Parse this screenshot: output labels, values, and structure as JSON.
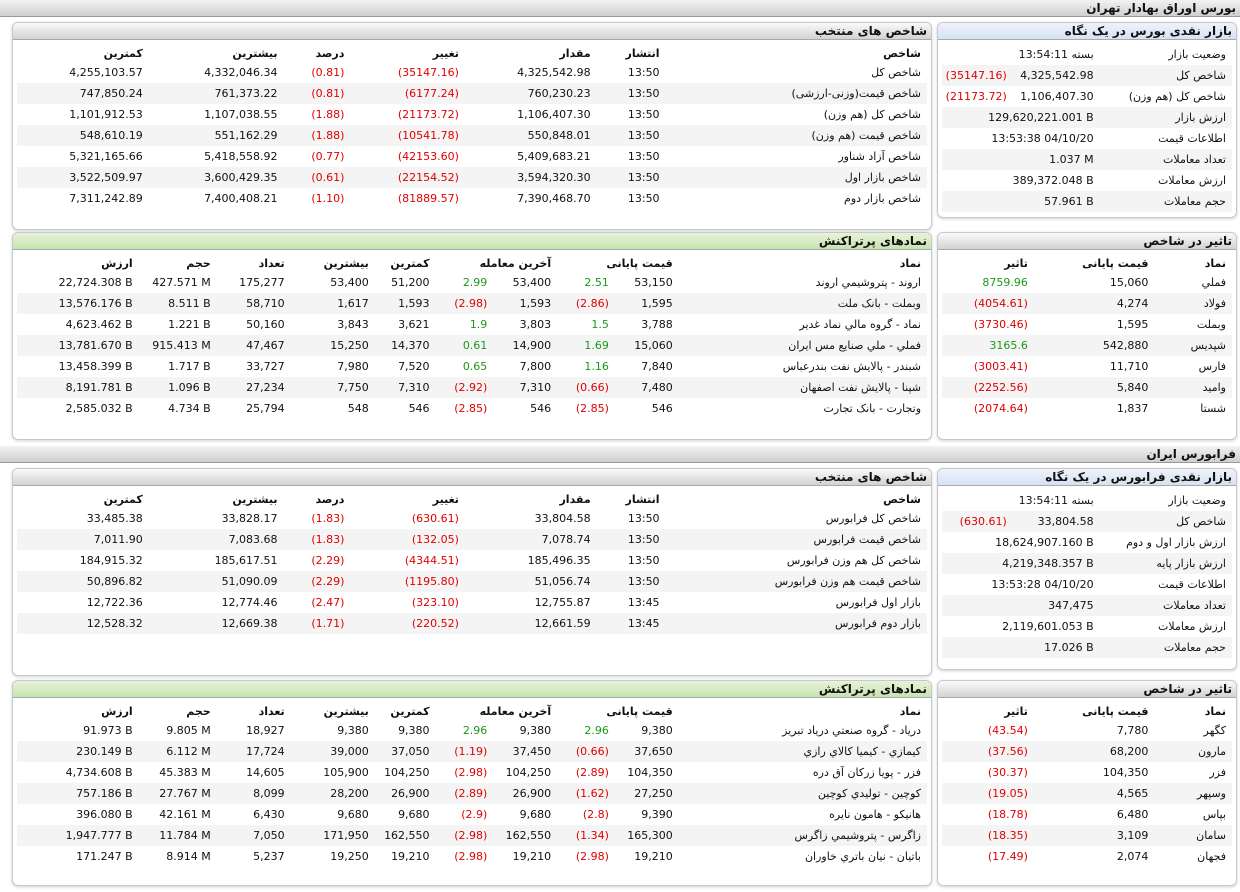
{
  "sections": [
    {
      "title": "بورس اوراق بهادار تهران",
      "overview": {
        "title": "بازار نقدی بورس در یک نگاه",
        "rows": [
          [
            "وضعیت بازار",
            "بسته 13:54:11"
          ],
          [
            "شاخص کل",
            "4,325,542.98",
            "(35147.16)"
          ],
          [
            "شاخص کل (هم وزن)",
            "1,106,407.30",
            "(21173.72)"
          ],
          [
            "ارزش بازار",
            "129,620,221.001 B"
          ],
          [
            "اطلاعات قیمت",
            "13:53:38 04/10/20"
          ],
          [
            "تعداد معاملات",
            "1.037 M"
          ],
          [
            "ارزش معاملات",
            "389,372.048 B"
          ],
          [
            "حجم معاملات",
            "57.961 B"
          ]
        ]
      },
      "indices": {
        "title": "شاخص های منتخب",
        "headers": [
          "شاخص",
          "انتشار",
          "مقدار",
          "تغییر",
          "درصد",
          "بیشترین",
          "کمترین"
        ],
        "rows": [
          [
            "شاخص کل",
            "13:50",
            "4,325,542.98",
            "(35147.16)",
            "(0.81)",
            "4,332,046.34",
            "4,255,103.57"
          ],
          [
            "شاخص قیمت(وزنی-ارزشی)",
            "13:50",
            "760,230.23",
            "(6177.24)",
            "(0.81)",
            "761,373.22",
            "747,850.24"
          ],
          [
            "شاخص کل (هم وزن)",
            "13:50",
            "1,106,407.30",
            "(21173.72)",
            "(1.88)",
            "1,107,038.55",
            "1,101,912.53"
          ],
          [
            "شاخص قیمت (هم وزن)",
            "13:50",
            "550,848.01",
            "(10541.78)",
            "(1.88)",
            "551,162.29",
            "548,610.19"
          ],
          [
            "شاخص آزاد شناور",
            "13:50",
            "5,409,683.21",
            "(42153.60)",
            "(0.77)",
            "5,418,558.92",
            "5,321,165.66"
          ],
          [
            "شاخص بازار اول",
            "13:50",
            "3,594,320.30",
            "(22154.52)",
            "(0.61)",
            "3,600,429.35",
            "3,522,509.97"
          ],
          [
            "شاخص بازار دوم",
            "13:50",
            "7,390,468.70",
            "(81889.57)",
            "(1.10)",
            "7,400,408.21",
            "7,311,242.89"
          ]
        ]
      },
      "impact": {
        "title": "تاثیر در شاخص",
        "headers": [
          "نماد",
          "قیمت پایانی",
          "تاثیر"
        ],
        "rows": [
          [
            "فملي",
            "15,060",
            "8759.96"
          ],
          [
            "فولاد",
            "4,274",
            "(4054.61)"
          ],
          [
            "وبملت",
            "1,595",
            "(3730.46)"
          ],
          [
            "شپديس",
            "542,880",
            "3165.6"
          ],
          [
            "فارس",
            "11,710",
            "(3003.41)"
          ],
          [
            "واميد",
            "5,840",
            "(2252.56)"
          ],
          [
            "شستا",
            "1,837",
            "(2074.64)"
          ]
        ]
      },
      "top": {
        "title": "نمادهای پرتراکنش",
        "headers": [
          "نماد",
          "قیمت پایانی",
          "آخرین معامله",
          "کمترین",
          "بیشترین",
          "تعداد",
          "حجم",
          "ارزش"
        ],
        "rows": [
          [
            "اروند - پتروشيمي اروند",
            "53,150",
            "2.51",
            "53,400",
            "2.99",
            "51,200",
            "53,400",
            "175,277",
            "427.571 M",
            "22,724.308 B"
          ],
          [
            "وبملت - بانک ملت",
            "1,595",
            "(2.86)",
            "1,593",
            "(2.98)",
            "1,593",
            "1,617",
            "58,710",
            "8.511 B",
            "13,576.176 B"
          ],
          [
            "نماد - گروه مالي نماد غدير",
            "3,788",
            "1.5",
            "3,803",
            "1.9",
            "3,621",
            "3,843",
            "50,160",
            "1.221 B",
            "4,623.462 B"
          ],
          [
            "فملي - ملي صنايع مس ايران",
            "15,060",
            "1.69",
            "14,900",
            "0.61",
            "14,370",
            "15,250",
            "47,467",
            "915.413 M",
            "13,781.670 B"
          ],
          [
            "شبندر - پالايش نفت بندرعباس",
            "7,840",
            "1.16",
            "7,800",
            "0.65",
            "7,520",
            "7,980",
            "33,727",
            "1.717 B",
            "13,458.399 B"
          ],
          [
            "شپنا - پالايش نفت اصفهان",
            "7,480",
            "(0.66)",
            "7,310",
            "(2.92)",
            "7,310",
            "7,750",
            "27,234",
            "1.096 B",
            "8,191.781 B"
          ],
          [
            "وتجارت - بانک تجارت",
            "546",
            "(2.85)",
            "546",
            "(2.85)",
            "546",
            "548",
            "25,794",
            "4.734 B",
            "2,585.032 B"
          ]
        ]
      }
    },
    {
      "title": "فرابورس ایران",
      "overview": {
        "title": "بازار نقدی فرابورس در یک نگاه",
        "rows": [
          [
            "وضعیت بازار",
            "بسته 13:54:11"
          ],
          [
            "شاخص کل",
            "33,804.58",
            "(630.61)"
          ],
          [
            "ارزش بازار اول و دوم",
            "18,624,907.160 B"
          ],
          [
            "ارزش بازار پایه",
            "4,219,348.357 B"
          ],
          [
            "اطلاعات قیمت",
            "13:53:28 04/10/20"
          ],
          [
            "تعداد معاملات",
            "347,475"
          ],
          [
            "ارزش معاملات",
            "2,119,601.053 B"
          ],
          [
            "حجم معاملات",
            "17.026 B"
          ]
        ]
      },
      "indices": {
        "title": "شاخص های منتخب",
        "headers": [
          "شاخص",
          "انتشار",
          "مقدار",
          "تغییر",
          "درصد",
          "بیشترین",
          "کمترین"
        ],
        "rows": [
          [
            "شاخص کل فرابورس",
            "13:50",
            "33,804.58",
            "(630.61)",
            "(1.83)",
            "33,828.17",
            "33,485.38"
          ],
          [
            "شاخص قيمت فرابورس",
            "13:50",
            "7,078.74",
            "(132.05)",
            "(1.83)",
            "7,083.68",
            "7,011.90"
          ],
          [
            "شاخص کل هم وزن فرابورس",
            "13:50",
            "185,496.35",
            "(4344.51)",
            "(2.29)",
            "185,617.51",
            "184,915.32"
          ],
          [
            "شاخص قيمت هم وزن فرابورس",
            "13:50",
            "51,056.74",
            "(1195.80)",
            "(2.29)",
            "51,090.09",
            "50,896.82"
          ],
          [
            "بازار اول فرابورس",
            "13:45",
            "12,755.87",
            "(323.10)",
            "(2.47)",
            "12,774.46",
            "12,722.36"
          ],
          [
            "بازار دوم فرابورس",
            "13:45",
            "12,661.59",
            "(220.52)",
            "(1.71)",
            "12,669.38",
            "12,528.32"
          ]
        ]
      },
      "impact": {
        "title": "تاثیر در شاخص",
        "headers": [
          "نماد",
          "قیمت پایانی",
          "تاثیر"
        ],
        "rows": [
          [
            "کگهر",
            "7,780",
            "(43.54)"
          ],
          [
            "مارون",
            "68,200",
            "(37.56)"
          ],
          [
            "فزر",
            "104,350",
            "(30.37)"
          ],
          [
            "وسپهر",
            "4,565",
            "(19.05)"
          ],
          [
            "بپاس",
            "6,480",
            "(18.78)"
          ],
          [
            "سامان",
            "3,109",
            "(18.35)"
          ],
          [
            "فجهان",
            "2,074",
            "(17.49)"
          ]
        ]
      },
      "top": {
        "title": "نمادهای پرتراکنش",
        "headers": [
          "نماد",
          "قیمت پایانی",
          "آخرین معامله",
          "کمترین",
          "بیشترین",
          "تعداد",
          "حجم",
          "ارزش"
        ],
        "rows": [
          [
            "درياد - گروه صنعتي درياد تبريز",
            "9,380",
            "2.96",
            "9,380",
            "2.96",
            "9,380",
            "9,380",
            "18,927",
            "9.805 M",
            "91.973 B"
          ],
          [
            "کيمازي - کيميا کالاي رازي",
            "37,650",
            "(0.66)",
            "37,450",
            "(1.19)",
            "37,050",
            "39,000",
            "17,724",
            "6.112 M",
            "230.149 B"
          ],
          [
            "فزر - پويا زرکان آق دره",
            "104,350",
            "(2.89)",
            "104,250",
            "(2.98)",
            "104,250",
            "105,900",
            "14,605",
            "45.383 M",
            "4,734.608 B"
          ],
          [
            "کوچين - توليدي کوچين",
            "27,250",
            "(1.62)",
            "26,900",
            "(2.89)",
            "26,900",
            "28,200",
            "8,099",
            "27.767 M",
            "757.186 B"
          ],
          [
            "هانيکو - هامون نايره",
            "9,390",
            "(2.8)",
            "9,680",
            "(2.9)",
            "9,680",
            "9,680",
            "6,430",
            "42.161 M",
            "396.080 B"
          ],
          [
            "زاگرس - پتروشيمي زاگرس",
            "165,300",
            "(1.34)",
            "162,550",
            "(2.98)",
            "162,550",
            "171,950",
            "7,050",
            "11.784 M",
            "1,947.777 B"
          ],
          [
            "باتيان - نيان باتري خاوران",
            "19,210",
            "(2.98)",
            "19,210",
            "(2.98)",
            "19,210",
            "19,250",
            "5,237",
            "8.914 M",
            "171.247 B"
          ]
        ]
      }
    }
  ]
}
